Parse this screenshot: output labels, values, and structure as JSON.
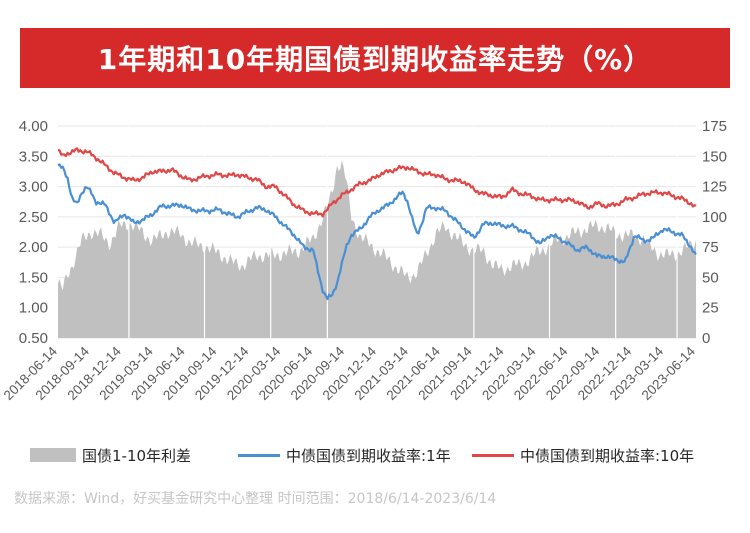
{
  "title": "1年期和10年期国债到期收益率走势（%）",
  "source": "数据来源：Wind，好买基金研究中心整理  时间范围：2018/6/14-2023/6/14",
  "colors": {
    "title_bg": "#d62a2a",
    "spread": "#c0c0c0",
    "y1": "#4a8fd4",
    "y10": "#e04848"
  },
  "chart_data": {
    "type": "line",
    "left_axis": {
      "min": 0.5,
      "max": 4.0,
      "step": 0.5,
      "ticks": [
        "4.00",
        "3.50",
        "3.00",
        "2.50",
        "2.00",
        "1.50",
        "1.00",
        "0.50"
      ]
    },
    "right_axis": {
      "min": 0,
      "max": 175,
      "step": 25,
      "ticks": [
        "175",
        "150",
        "125",
        "100",
        "75",
        "50",
        "25",
        "0"
      ]
    },
    "x_labels": [
      "2018-06-14",
      "2018-09-14",
      "2018-12-14",
      "2019-03-14",
      "2019-06-14",
      "2019-09-14",
      "2019-12-14",
      "2020-03-14",
      "2020-06-14",
      "2020-09-14",
      "2020-12-14",
      "2021-03-14",
      "2021-06-14",
      "2021-09-14",
      "2021-12-14",
      "2022-03-14",
      "2022-06-14",
      "2022-09-14",
      "2022-12-14",
      "2023-03-14",
      "2023-06-14"
    ],
    "series": [
      {
        "name": "国债1-10年利差",
        "kind": "area",
        "axis": "right",
        "points": [
          [
            0,
            45
          ],
          [
            1,
            40
          ],
          [
            2,
            52
          ],
          [
            3,
            60
          ],
          [
            5,
            80
          ],
          [
            7,
            88
          ],
          [
            9,
            85
          ],
          [
            11,
            78
          ],
          [
            13,
            92
          ],
          [
            15,
            95
          ],
          [
            17,
            90
          ],
          [
            20,
            80
          ],
          [
            23,
            88
          ],
          [
            26,
            86
          ],
          [
            28,
            78
          ],
          [
            31,
            76
          ],
          [
            34,
            70
          ],
          [
            37,
            62
          ],
          [
            39,
            60
          ],
          [
            42,
            68
          ],
          [
            45,
            68
          ],
          [
            48,
            70
          ],
          [
            51,
            72
          ],
          [
            54,
            82
          ],
          [
            57,
            108
          ],
          [
            58,
            120
          ],
          [
            59,
            142
          ],
          [
            60,
            144
          ],
          [
            61,
            130
          ],
          [
            62,
            102
          ],
          [
            64,
            82
          ],
          [
            66,
            78
          ],
          [
            68,
            70
          ],
          [
            70,
            65
          ],
          [
            72,
            56
          ],
          [
            74,
            50
          ],
          [
            76,
            54
          ],
          [
            78,
            70
          ],
          [
            80,
            86
          ],
          [
            82,
            92
          ],
          [
            84,
            84
          ],
          [
            86,
            77
          ],
          [
            88,
            72
          ],
          [
            90,
            72
          ],
          [
            92,
            60
          ],
          [
            94,
            56
          ],
          [
            96,
            60
          ],
          [
            98,
            60
          ],
          [
            100,
            66
          ],
          [
            102,
            72
          ],
          [
            104,
            76
          ],
          [
            106,
            82
          ],
          [
            108,
            84
          ],
          [
            110,
            88
          ],
          [
            112,
            90
          ],
          [
            114,
            93
          ],
          [
            116,
            91
          ],
          [
            118,
            86
          ],
          [
            120,
            85
          ],
          [
            122,
            84
          ],
          [
            124,
            82
          ],
          [
            125,
            76
          ],
          [
            127,
            70
          ],
          [
            129,
            68
          ],
          [
            131,
            70
          ],
          [
            133,
            74
          ],
          [
            135,
            80
          ]
        ]
      },
      {
        "name": "中债国债到期收益率:1年",
        "kind": "line",
        "axis": "left",
        "points": [
          [
            0,
            3.35
          ],
          [
            1,
            3.3
          ],
          [
            2,
            3.15
          ],
          [
            3,
            2.8
          ],
          [
            4,
            2.7
          ],
          [
            5,
            2.9
          ],
          [
            6,
            3.0
          ],
          [
            7,
            2.9
          ],
          [
            8,
            2.75
          ],
          [
            10,
            2.7
          ],
          [
            12,
            2.4
          ],
          [
            14,
            2.55
          ],
          [
            16,
            2.4
          ],
          [
            18,
            2.45
          ],
          [
            20,
            2.55
          ],
          [
            22,
            2.68
          ],
          [
            24,
            2.68
          ],
          [
            26,
            2.7
          ],
          [
            28,
            2.62
          ],
          [
            30,
            2.6
          ],
          [
            32,
            2.6
          ],
          [
            34,
            2.62
          ],
          [
            36,
            2.55
          ],
          [
            38,
            2.5
          ],
          [
            40,
            2.58
          ],
          [
            42,
            2.65
          ],
          [
            44,
            2.62
          ],
          [
            46,
            2.5
          ],
          [
            48,
            2.35
          ],
          [
            50,
            2.2
          ],
          [
            52,
            2.0
          ],
          [
            54,
            1.95
          ],
          [
            55,
            1.6
          ],
          [
            56,
            1.3
          ],
          [
            57,
            1.15
          ],
          [
            58,
            1.2
          ],
          [
            59,
            1.4
          ],
          [
            60,
            1.7
          ],
          [
            61,
            2.0
          ],
          [
            62,
            2.2
          ],
          [
            64,
            2.3
          ],
          [
            66,
            2.5
          ],
          [
            68,
            2.62
          ],
          [
            70,
            2.7
          ],
          [
            72,
            2.85
          ],
          [
            73,
            2.9
          ],
          [
            74,
            2.75
          ],
          [
            75,
            2.45
          ],
          [
            76,
            2.2
          ],
          [
            77,
            2.4
          ],
          [
            78,
            2.65
          ],
          [
            80,
            2.65
          ],
          [
            82,
            2.6
          ],
          [
            84,
            2.45
          ],
          [
            86,
            2.3
          ],
          [
            88,
            2.15
          ],
          [
            90,
            2.38
          ],
          [
            92,
            2.4
          ],
          [
            94,
            2.35
          ],
          [
            96,
            2.35
          ],
          [
            98,
            2.28
          ],
          [
            100,
            2.2
          ],
          [
            102,
            2.05
          ],
          [
            104,
            2.2
          ],
          [
            106,
            2.15
          ],
          [
            108,
            2.05
          ],
          [
            110,
            1.95
          ],
          [
            112,
            2.0
          ],
          [
            114,
            1.85
          ],
          [
            116,
            1.85
          ],
          [
            118,
            1.8
          ],
          [
            120,
            1.75
          ],
          [
            122,
            2.2
          ],
          [
            124,
            2.1
          ],
          [
            126,
            2.15
          ],
          [
            128,
            2.3
          ],
          [
            130,
            2.25
          ],
          [
            132,
            2.2
          ],
          [
            134,
            2.0
          ],
          [
            135,
            1.85
          ]
        ]
      },
      {
        "name": "中债国债到期收益率:10年",
        "kind": "line",
        "axis": "left",
        "points": [
          [
            0,
            3.6
          ],
          [
            1,
            3.5
          ],
          [
            2,
            3.55
          ],
          [
            4,
            3.6
          ],
          [
            6,
            3.58
          ],
          [
            8,
            3.48
          ],
          [
            10,
            3.35
          ],
          [
            12,
            3.22
          ],
          [
            14,
            3.15
          ],
          [
            16,
            3.1
          ],
          [
            18,
            3.15
          ],
          [
            20,
            3.25
          ],
          [
            22,
            3.25
          ],
          [
            24,
            3.28
          ],
          [
            26,
            3.18
          ],
          [
            28,
            3.1
          ],
          [
            30,
            3.15
          ],
          [
            32,
            3.18
          ],
          [
            34,
            3.2
          ],
          [
            36,
            3.18
          ],
          [
            38,
            3.2
          ],
          [
            40,
            3.15
          ],
          [
            42,
            3.12
          ],
          [
            44,
            3.0
          ],
          [
            46,
            3.0
          ],
          [
            48,
            2.85
          ],
          [
            50,
            2.7
          ],
          [
            52,
            2.6
          ],
          [
            54,
            2.55
          ],
          [
            55,
            2.55
          ],
          [
            56,
            2.55
          ],
          [
            57,
            2.62
          ],
          [
            58,
            2.72
          ],
          [
            60,
            2.85
          ],
          [
            62,
            2.95
          ],
          [
            64,
            3.05
          ],
          [
            66,
            3.1
          ],
          [
            68,
            3.2
          ],
          [
            70,
            3.25
          ],
          [
            72,
            3.3
          ],
          [
            74,
            3.32
          ],
          [
            76,
            3.25
          ],
          [
            78,
            3.2
          ],
          [
            80,
            3.2
          ],
          [
            82,
            3.12
          ],
          [
            84,
            3.1
          ],
          [
            86,
            3.08
          ],
          [
            88,
            2.95
          ],
          [
            90,
            2.88
          ],
          [
            92,
            2.85
          ],
          [
            94,
            2.82
          ],
          [
            96,
            2.95
          ],
          [
            98,
            2.88
          ],
          [
            100,
            2.85
          ],
          [
            102,
            2.78
          ],
          [
            104,
            2.78
          ],
          [
            106,
            2.78
          ],
          [
            108,
            2.78
          ],
          [
            110,
            2.75
          ],
          [
            112,
            2.65
          ],
          [
            114,
            2.72
          ],
          [
            116,
            2.68
          ],
          [
            118,
            2.7
          ],
          [
            120,
            2.78
          ],
          [
            122,
            2.82
          ],
          [
            124,
            2.88
          ],
          [
            126,
            2.9
          ],
          [
            128,
            2.9
          ],
          [
            130,
            2.85
          ],
          [
            132,
            2.8
          ],
          [
            134,
            2.72
          ],
          [
            135,
            2.65
          ]
        ]
      }
    ]
  },
  "legend": {
    "spread_label": "国债1-10年利差",
    "y1_label": "中债国债到期收益率:1年",
    "y10_label": "中债国债到期收益率:10年"
  }
}
